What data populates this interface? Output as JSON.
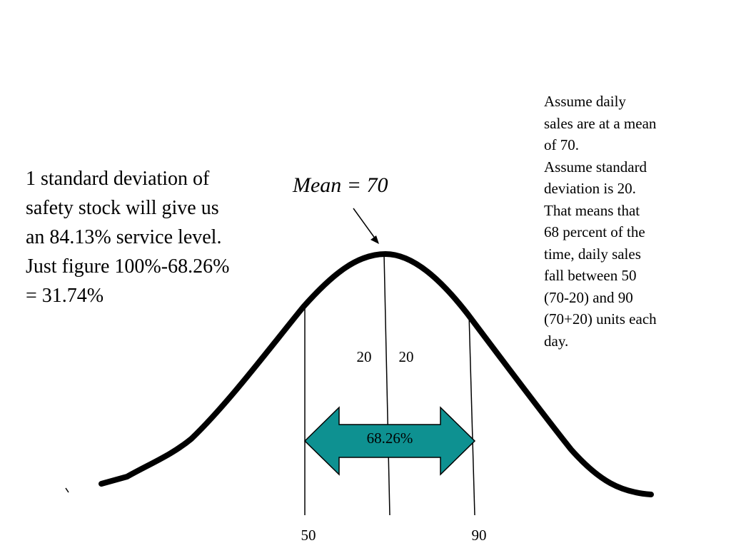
{
  "left_note": {
    "lines": [
      "1 standard deviation of",
      "safety stock will give us",
      "an 84.13% service level.",
      "Just figure 100%-68.26%",
      "= 31.74%"
    ]
  },
  "right_note": {
    "lines": [
      "Assume daily",
      "sales are at a mean",
      "of 70.",
      "Assume standard",
      "deviation is 20.",
      "That means that",
      "68 percent of the",
      "time, daily sales",
      "fall between 50",
      "(70-20) and 90",
      "(70+20) units each",
      "day."
    ]
  },
  "diagram": {
    "mean_label": "Mean = 70",
    "left_sd_label": "20",
    "right_sd_label": "20",
    "range_label": "68.26%",
    "lower_bound_label": "50",
    "upper_bound_label": "90",
    "arrow_color": "#0E9191",
    "curve_color": "#000000"
  }
}
